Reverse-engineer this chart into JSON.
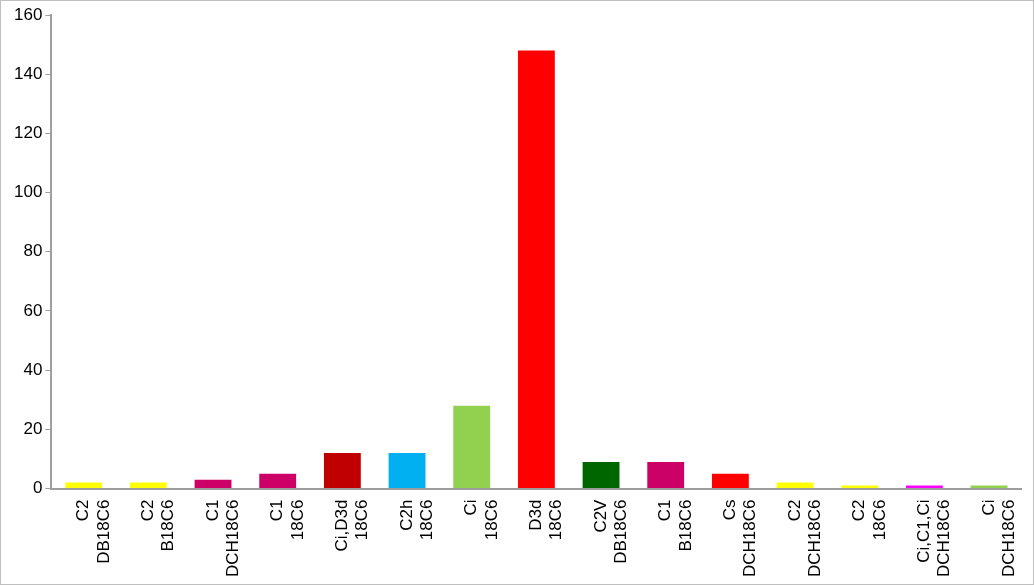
{
  "chart_data": {
    "type": "bar",
    "categories": [
      "C2\nDB18C6",
      "C2\nB18C6",
      "C1\nDCH18C6",
      "C1\n18C6",
      "Ci,D3d\n18C6",
      "C2h\n18C6",
      "Ci\n18C6",
      "D3d\n18C6",
      "C2V\nDB18C6",
      "C1\nB18C6",
      "Cs\nDCH18C6",
      "C2\nDCH18C6",
      "C2\n18C6",
      "Ci,C1,Ci\nDCH18C6",
      "Ci\nDCH18C6"
    ],
    "values": [
      2,
      2,
      3,
      5,
      12,
      12,
      28,
      148,
      9,
      9,
      5,
      2,
      1,
      1,
      1
    ],
    "colors": [
      "#ffff00",
      "#ffff00",
      "#cc0066",
      "#cc0066",
      "#c00000",
      "#00b0f0",
      "#92d050",
      "#ff0000",
      "#006600",
      "#cc0066",
      "#ff0000",
      "#ffff00",
      "#ffff00",
      "#ff00ff",
      "#92d050"
    ],
    "ylim": [
      0,
      160
    ],
    "yticks": [
      0,
      20,
      40,
      60,
      80,
      100,
      120,
      140,
      160
    ],
    "grid": false,
    "legend": false
  }
}
